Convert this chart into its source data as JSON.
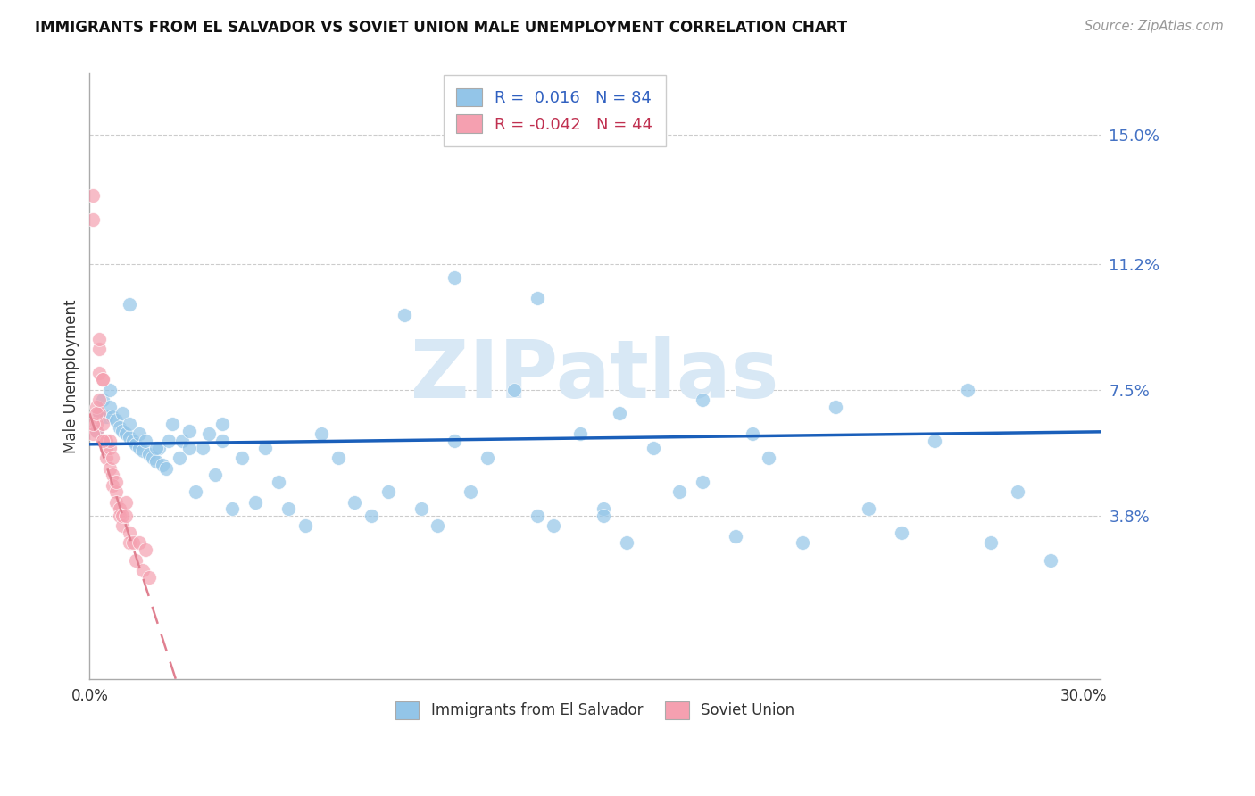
{
  "title": "IMMIGRANTS FROM EL SALVADOR VS SOVIET UNION MALE UNEMPLOYMENT CORRELATION CHART",
  "source": "Source: ZipAtlas.com",
  "ylabel": "Male Unemployment",
  "xlim": [
    0.0,
    0.305
  ],
  "ylim": [
    -0.01,
    0.168
  ],
  "yticks": [
    0.038,
    0.075,
    0.112,
    0.15
  ],
  "ytick_labels": [
    "3.8%",
    "7.5%",
    "11.2%",
    "15.0%"
  ],
  "xticks": [
    0.0,
    0.05,
    0.1,
    0.15,
    0.2,
    0.25,
    0.3
  ],
  "legend1_label": "Immigrants from El Salvador",
  "legend2_label": "Soviet Union",
  "blue_scatter": "#93c5e8",
  "pink_scatter": "#f5a0b0",
  "regression_blue": "#1a5fba",
  "regression_pink": "#e08090",
  "watermark_color": "#d8e8f5",
  "el_salvador_x": [
    0.002,
    0.003,
    0.004,
    0.005,
    0.006,
    0.006,
    0.007,
    0.008,
    0.009,
    0.01,
    0.01,
    0.011,
    0.012,
    0.012,
    0.013,
    0.014,
    0.015,
    0.015,
    0.016,
    0.017,
    0.018,
    0.019,
    0.02,
    0.021,
    0.022,
    0.023,
    0.024,
    0.025,
    0.027,
    0.028,
    0.03,
    0.032,
    0.034,
    0.036,
    0.038,
    0.04,
    0.043,
    0.046,
    0.05,
    0.053,
    0.057,
    0.06,
    0.065,
    0.07,
    0.075,
    0.08,
    0.085,
    0.09,
    0.095,
    0.1,
    0.105,
    0.11,
    0.115,
    0.12,
    0.128,
    0.135,
    0.14,
    0.148,
    0.155,
    0.162,
    0.17,
    0.178,
    0.185,
    0.195,
    0.205,
    0.215,
    0.225,
    0.235,
    0.245,
    0.255,
    0.265,
    0.272,
    0.28,
    0.29,
    0.11,
    0.155,
    0.135,
    0.16,
    0.185,
    0.2,
    0.012,
    0.02,
    0.03,
    0.04
  ],
  "el_salvador_y": [
    0.063,
    0.068,
    0.072,
    0.067,
    0.07,
    0.075,
    0.067,
    0.066,
    0.064,
    0.063,
    0.068,
    0.062,
    0.061,
    0.065,
    0.06,
    0.059,
    0.058,
    0.062,
    0.057,
    0.06,
    0.056,
    0.055,
    0.054,
    0.058,
    0.053,
    0.052,
    0.06,
    0.065,
    0.055,
    0.06,
    0.063,
    0.045,
    0.058,
    0.062,
    0.05,
    0.065,
    0.04,
    0.055,
    0.042,
    0.058,
    0.048,
    0.04,
    0.035,
    0.062,
    0.055,
    0.042,
    0.038,
    0.045,
    0.097,
    0.04,
    0.035,
    0.06,
    0.045,
    0.055,
    0.075,
    0.038,
    0.035,
    0.062,
    0.04,
    0.03,
    0.058,
    0.045,
    0.048,
    0.032,
    0.055,
    0.03,
    0.07,
    0.04,
    0.033,
    0.06,
    0.075,
    0.03,
    0.045,
    0.025,
    0.108,
    0.038,
    0.102,
    0.068,
    0.072,
    0.062,
    0.1,
    0.058,
    0.058,
    0.06
  ],
  "soviet_x": [
    0.002,
    0.002,
    0.003,
    0.003,
    0.003,
    0.004,
    0.004,
    0.004,
    0.005,
    0.005,
    0.005,
    0.006,
    0.006,
    0.006,
    0.007,
    0.007,
    0.007,
    0.008,
    0.008,
    0.008,
    0.009,
    0.009,
    0.01,
    0.01,
    0.011,
    0.011,
    0.012,
    0.012,
    0.013,
    0.014,
    0.015,
    0.016,
    0.017,
    0.018,
    0.001,
    0.001,
    0.001,
    0.001,
    0.002,
    0.002,
    0.003,
    0.003,
    0.004,
    0.004
  ],
  "soviet_y": [
    0.065,
    0.063,
    0.087,
    0.08,
    0.068,
    0.065,
    0.06,
    0.078,
    0.058,
    0.055,
    0.06,
    0.058,
    0.052,
    0.06,
    0.055,
    0.05,
    0.047,
    0.045,
    0.042,
    0.048,
    0.04,
    0.038,
    0.035,
    0.038,
    0.038,
    0.042,
    0.033,
    0.03,
    0.03,
    0.025,
    0.03,
    0.022,
    0.028,
    0.02,
    0.062,
    0.065,
    0.132,
    0.125,
    0.07,
    0.068,
    0.09,
    0.072,
    0.078,
    0.06
  ]
}
